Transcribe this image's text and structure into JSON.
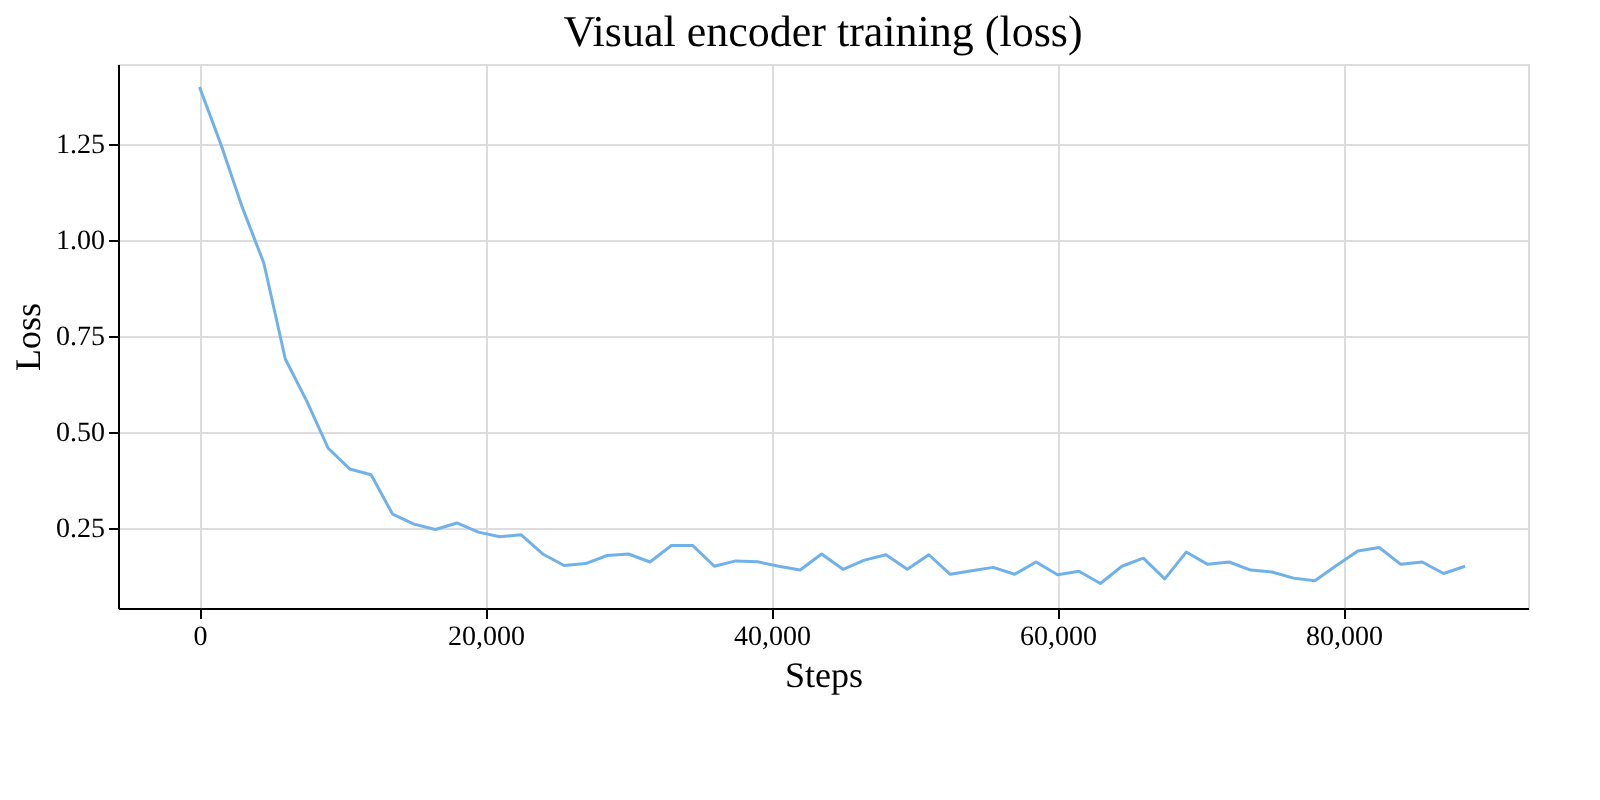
{
  "chart_data": {
    "type": "line",
    "title": "Visual encoder training (loss)",
    "xlabel": "Steps",
    "ylabel": "Loss",
    "x": [
      0,
      1500,
      3000,
      4500,
      6000,
      7500,
      9000,
      10500,
      12000,
      13500,
      15000,
      16500,
      18000,
      19500,
      21000,
      22500,
      24000,
      25500,
      27000,
      28500,
      30000,
      31500,
      33000,
      34500,
      36000,
      37500,
      39000,
      40500,
      42000,
      43500,
      45000,
      46500,
      48000,
      49500,
      51000,
      52500,
      54000,
      55500,
      57000,
      58500,
      60000,
      61500,
      63000,
      64500,
      66000,
      67500,
      69000,
      70500,
      72000,
      73500,
      75000,
      76500,
      78000,
      79500,
      81000,
      82500,
      84000,
      85500,
      87000,
      88500
    ],
    "series": [
      {
        "color": "#6fb1e8",
        "values": [
          1.4,
          1.25,
          1.085,
          0.94,
          0.69,
          0.58,
          0.457,
          0.403,
          0.388,
          0.285,
          0.259,
          0.245,
          0.262,
          0.238,
          0.226,
          0.231,
          0.181,
          0.151,
          0.156,
          0.177,
          0.181,
          0.16,
          0.203,
          0.203,
          0.149,
          0.163,
          0.161,
          0.149,
          0.139,
          0.181,
          0.141,
          0.165,
          0.179,
          0.141,
          0.179,
          0.128,
          0.137,
          0.146,
          0.128,
          0.16,
          0.127,
          0.136,
          0.104,
          0.149,
          0.17,
          0.116,
          0.186,
          0.154,
          0.16,
          0.139,
          0.134,
          0.118,
          0.111,
          0.151,
          0.189,
          0.198,
          0.154,
          0.16,
          0.13,
          0.149
        ]
      }
    ],
    "xlim": [
      -5700,
      92900
    ],
    "ylim": [
      0.04,
      1.46
    ],
    "xticks": [
      {
        "value": 0,
        "label": "0"
      },
      {
        "value": 20000,
        "label": "20,000"
      },
      {
        "value": 40000,
        "label": "40,000"
      },
      {
        "value": 60000,
        "label": "60,000"
      },
      {
        "value": 80000,
        "label": "80,000"
      }
    ],
    "yticks": [
      {
        "value": 0.25,
        "label": "0.25"
      },
      {
        "value": 0.5,
        "label": "0.50"
      },
      {
        "value": 0.75,
        "label": "0.75"
      },
      {
        "value": 1.0,
        "label": "1.00"
      },
      {
        "value": 1.25,
        "label": "1.25"
      }
    ],
    "grid": true,
    "marker": "none",
    "line_style": "solid"
  }
}
